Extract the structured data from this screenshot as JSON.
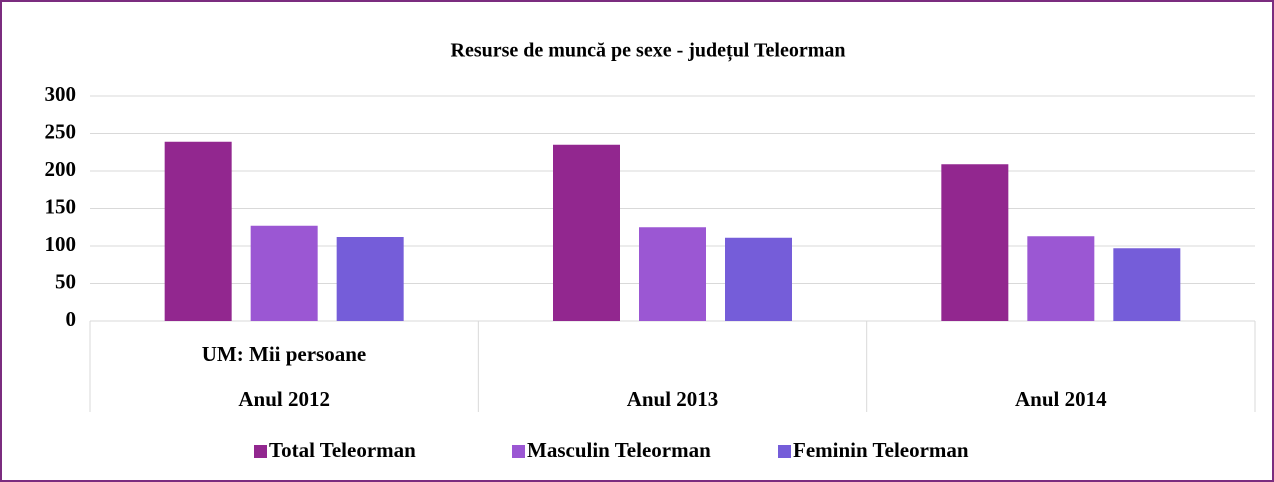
{
  "chart_data": {
    "type": "bar",
    "title": "Resurse de muncă pe sexe - județul Teleorman",
    "unit_label": "UM: Mii persoane",
    "categories": [
      "Anul 2012",
      "Anul 2013",
      "Anul 2014"
    ],
    "series": [
      {
        "name": "Total Teleorman",
        "color": "#92278f",
        "values": [
          239,
          235,
          209
        ]
      },
      {
        "name": "Masculin Teleorman",
        "color": "#9b57d3",
        "values": [
          127,
          125,
          113
        ]
      },
      {
        "name": "Feminin Teleorman",
        "color": "#755dd9",
        "values": [
          112,
          111,
          97
        ]
      }
    ],
    "ylim": [
      0,
      300
    ],
    "yticks": [
      0,
      50,
      100,
      150,
      200,
      250,
      300
    ],
    "grid": true,
    "legend": "bottom"
  }
}
